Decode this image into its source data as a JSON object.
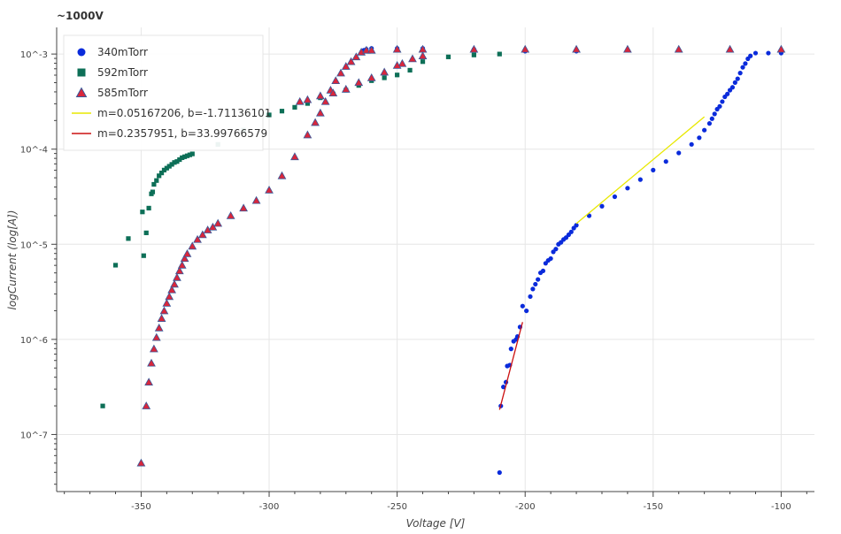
{
  "chart_data": {
    "type": "scatter",
    "title": "~1000V",
    "xlabel": "Voltage [V]",
    "ylabel": "logCurrent (log[A])",
    "xlim": [
      -383,
      -87
    ],
    "ylog": true,
    "ylim_log10": [
      -7.6,
      -2.72
    ],
    "x_ticks": [
      -350,
      -300,
      -250,
      -200,
      -150,
      -100
    ],
    "x_tick_labels": [
      "-350",
      "-300",
      "-250",
      "-200",
      "-150",
      "-100"
    ],
    "y_ticks_log10": [
      -7,
      -6,
      -5,
      -4,
      -3
    ],
    "y_tick_labels": [
      "10^-7",
      "10^-6",
      "10^-5",
      "10^-4",
      "10^-3"
    ],
    "grid": true,
    "legend_position": "top-left",
    "colors": {
      "s340": "#0a2bdb",
      "s592": "#0d6f57",
      "s585_fill": "#d9263b",
      "s585_edge": "#3a5a9a",
      "fit1": "#e8e800",
      "fit2": "#cc1111",
      "grid": "#e6e6e6"
    },
    "series": [
      {
        "name": "340mTorr",
        "marker": "circle",
        "points": [
          [
            -210,
            -7.4
          ],
          [
            -209.5,
            -6.7
          ],
          [
            -208.5,
            -6.5
          ],
          [
            -207.5,
            -6.45
          ],
          [
            -207,
            -6.28
          ],
          [
            -206,
            -6.27
          ],
          [
            -205.5,
            -6.1
          ],
          [
            -204.5,
            -6.02
          ],
          [
            -203.5,
            -6.0
          ],
          [
            -203,
            -5.97
          ],
          [
            -202,
            -5.87
          ],
          [
            -201,
            -5.65
          ],
          [
            -199.5,
            -5.7
          ],
          [
            -198,
            -5.55
          ],
          [
            -197,
            -5.47
          ],
          [
            -196,
            -5.42
          ],
          [
            -195,
            -5.37
          ],
          [
            -194,
            -5.3
          ],
          [
            -193,
            -5.28
          ],
          [
            -192,
            -5.2
          ],
          [
            -191,
            -5.17
          ],
          [
            -190,
            -5.15
          ],
          [
            -189,
            -5.08
          ],
          [
            -188,
            -5.05
          ],
          [
            -187,
            -5.0
          ],
          [
            -186,
            -4.98
          ],
          [
            -185,
            -4.95
          ],
          [
            -184,
            -4.93
          ],
          [
            -183,
            -4.9
          ],
          [
            -182,
            -4.87
          ],
          [
            -181,
            -4.83
          ],
          [
            -180,
            -4.8
          ],
          [
            -175,
            -4.7
          ],
          [
            -170,
            -4.6
          ],
          [
            -165,
            -4.5
          ],
          [
            -160,
            -4.41
          ],
          [
            -155,
            -4.32
          ],
          [
            -150,
            -4.22
          ],
          [
            -145,
            -4.13
          ],
          [
            -140,
            -4.04
          ],
          [
            -135,
            -3.95
          ],
          [
            -132,
            -3.88
          ],
          [
            -130,
            -3.8
          ],
          [
            -128,
            -3.73
          ],
          [
            -127,
            -3.68
          ],
          [
            -126,
            -3.63
          ],
          [
            -125,
            -3.58
          ],
          [
            -124,
            -3.55
          ],
          [
            -123,
            -3.5
          ],
          [
            -122,
            -3.45
          ],
          [
            -121,
            -3.42
          ],
          [
            -120,
            -3.38
          ],
          [
            -119,
            -3.35
          ],
          [
            -118,
            -3.3
          ],
          [
            -117,
            -3.26
          ],
          [
            -116,
            -3.2
          ],
          [
            -115,
            -3.14
          ],
          [
            -114,
            -3.1
          ],
          [
            -113,
            -3.05
          ],
          [
            -112,
            -3.02
          ],
          [
            -110,
            -2.99
          ],
          [
            -105,
            -2.99
          ],
          [
            -100,
            -2.99
          ],
          [
            -180,
            -2.97
          ],
          [
            -200,
            -2.97
          ],
          [
            -220,
            -2.95
          ],
          [
            -240,
            -2.94
          ],
          [
            -250,
            -2.94
          ],
          [
            -260,
            -2.94
          ],
          [
            -262,
            -2.95
          ],
          [
            -263,
            -2.96
          ]
        ]
      },
      {
        "name": "592mTorr",
        "marker": "square",
        "points": [
          [
            -365,
            -6.7
          ],
          [
            -360,
            -5.22
          ],
          [
            -355,
            -4.94
          ],
          [
            -349,
            -5.12
          ],
          [
            -349.5,
            -4.66
          ],
          [
            -348,
            -4.88
          ],
          [
            -347,
            -4.62
          ],
          [
            -346,
            -4.47
          ],
          [
            -345.5,
            -4.45
          ],
          [
            -345,
            -4.37
          ],
          [
            -344,
            -4.33
          ],
          [
            -343,
            -4.28
          ],
          [
            -342,
            -4.25
          ],
          [
            -341,
            -4.22
          ],
          [
            -340,
            -4.2
          ],
          [
            -339,
            -4.18
          ],
          [
            -338,
            -4.16
          ],
          [
            -337,
            -4.14
          ],
          [
            -336,
            -4.13
          ],
          [
            -335,
            -4.11
          ],
          [
            -334,
            -4.09
          ],
          [
            -333,
            -4.08
          ],
          [
            -332,
            -4.07
          ],
          [
            -331,
            -4.06
          ],
          [
            -330,
            -4.05
          ],
          [
            -320,
            -3.95
          ],
          [
            -310,
            -3.8
          ],
          [
            -300,
            -3.64
          ],
          [
            -295,
            -3.6
          ],
          [
            -290,
            -3.56
          ],
          [
            -285,
            -3.52
          ],
          [
            -280,
            -3.46
          ],
          [
            -275,
            -3.42
          ],
          [
            -270,
            -3.38
          ],
          [
            -265,
            -3.33
          ],
          [
            -260,
            -3.28
          ],
          [
            -255,
            -3.25
          ],
          [
            -250,
            -3.22
          ],
          [
            -245,
            -3.17
          ],
          [
            -240,
            -3.08
          ],
          [
            -230,
            -3.03
          ],
          [
            -220,
            -3.01
          ],
          [
            -210,
            -3.0
          ]
        ]
      },
      {
        "name": "585mTorr",
        "marker": "triangle",
        "points": [
          [
            -350,
            -7.3
          ],
          [
            -348,
            -6.7
          ],
          [
            -347,
            -6.45
          ],
          [
            -346,
            -6.25
          ],
          [
            -345,
            -6.1
          ],
          [
            -344,
            -5.98
          ],
          [
            -343,
            -5.88
          ],
          [
            -342,
            -5.78
          ],
          [
            -341,
            -5.7
          ],
          [
            -340,
            -5.62
          ],
          [
            -339,
            -5.55
          ],
          [
            -338,
            -5.48
          ],
          [
            -337,
            -5.42
          ],
          [
            -336,
            -5.35
          ],
          [
            -335,
            -5.28
          ],
          [
            -334,
            -5.22
          ],
          [
            -333,
            -5.15
          ],
          [
            -332,
            -5.1
          ],
          [
            -330,
            -5.02
          ],
          [
            -328,
            -4.95
          ],
          [
            -326,
            -4.9
          ],
          [
            -324,
            -4.85
          ],
          [
            -322,
            -4.82
          ],
          [
            -320,
            -4.78
          ],
          [
            -315,
            -4.7
          ],
          [
            -310,
            -4.62
          ],
          [
            -305,
            -4.54
          ],
          [
            -300,
            -4.43
          ],
          [
            -295,
            -4.28
          ],
          [
            -290,
            -4.08
          ],
          [
            -285,
            -3.85
          ],
          [
            -282,
            -3.72
          ],
          [
            -280,
            -3.62
          ],
          [
            -278,
            -3.5
          ],
          [
            -276,
            -3.38
          ],
          [
            -274,
            -3.28
          ],
          [
            -272,
            -3.2
          ],
          [
            -270,
            -3.13
          ],
          [
            -268,
            -3.08
          ],
          [
            -266,
            -3.03
          ],
          [
            -264,
            -2.98
          ],
          [
            -262,
            -2.96
          ],
          [
            -260,
            -2.96
          ],
          [
            -250,
            -2.95
          ],
          [
            -240,
            -2.95
          ],
          [
            -220,
            -2.95
          ],
          [
            -200,
            -2.95
          ],
          [
            -180,
            -2.95
          ],
          [
            -160,
            -2.95
          ],
          [
            -140,
            -2.95
          ],
          [
            -120,
            -2.95
          ],
          [
            -100,
            -2.95
          ],
          [
            -240,
            -3.02
          ],
          [
            -244,
            -3.05
          ],
          [
            -248,
            -3.1
          ],
          [
            -250,
            -3.12
          ],
          [
            -255,
            -3.19
          ],
          [
            -260,
            -3.25
          ],
          [
            -265,
            -3.3
          ],
          [
            -270,
            -3.37
          ],
          [
            -275,
            -3.41
          ],
          [
            -280,
            -3.44
          ],
          [
            -285,
            -3.48
          ],
          [
            -288,
            -3.5
          ]
        ]
      }
    ],
    "fit_lines": [
      {
        "name": "m=0.05167206, b=-1.71136101",
        "color_key": "fit1",
        "m": 0.05167206,
        "b": -1.71136101,
        "x_range": [
          -180,
          -130
        ]
      },
      {
        "name": "m=0.2357951, b=33.99766579",
        "color_key": "fit2",
        "m": 0.2357951,
        "b": 33.99766579,
        "x_range": [
          -210,
          -201
        ]
      }
    ],
    "legend": [
      {
        "label": "340mTorr",
        "kind": "circle",
        "color_key": "s340"
      },
      {
        "label": "592mTorr",
        "kind": "square",
        "color_key": "s592"
      },
      {
        "label": "585mTorr",
        "kind": "triangle",
        "color_key": "s585_fill"
      },
      {
        "label": "m=0.05167206, b=-1.71136101",
        "kind": "line",
        "color_key": "fit1"
      },
      {
        "label": "m=0.2357951, b=33.99766579",
        "kind": "line",
        "color_key": "fit2"
      }
    ]
  }
}
